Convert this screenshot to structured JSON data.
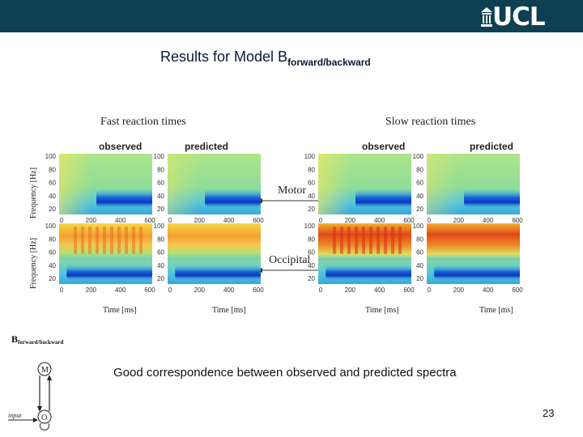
{
  "header": {
    "logo_text": "UCL",
    "logo_icon": "ucl-portico-icon"
  },
  "slide": {
    "title_main": "Results for Model B",
    "title_sub": "forward/backward",
    "caption": "Good correspondence between observed and predicted spectra",
    "page_number": "23"
  },
  "figure": {
    "group_left": "Fast reaction times",
    "group_right": "Slow reaction times",
    "col_observed": "observed",
    "col_predicted": "predicted",
    "row_motor": "Motor",
    "row_occipital": "Occipital",
    "ylabel": "Frequency [Hz]",
    "xlabel": "Time [ms]",
    "x_ticks": [
      "0",
      "200",
      "400",
      "600"
    ],
    "y_ticks": [
      "100",
      "80",
      "60",
      "40",
      "20"
    ]
  },
  "model_diagram": {
    "label_main": "B",
    "label_sub": "forward/backward",
    "node_motor": "M",
    "node_occipital": "O",
    "input_label": "input"
  },
  "colors": {
    "topbar": "#0d4052",
    "heatmap_blue": "#1a4fd0",
    "heatmap_cyan": "#40c0e0",
    "heatmap_green": "#9fe07a",
    "heatmap_yellow": "#f2e040",
    "heatmap_orange": "#f08020"
  }
}
